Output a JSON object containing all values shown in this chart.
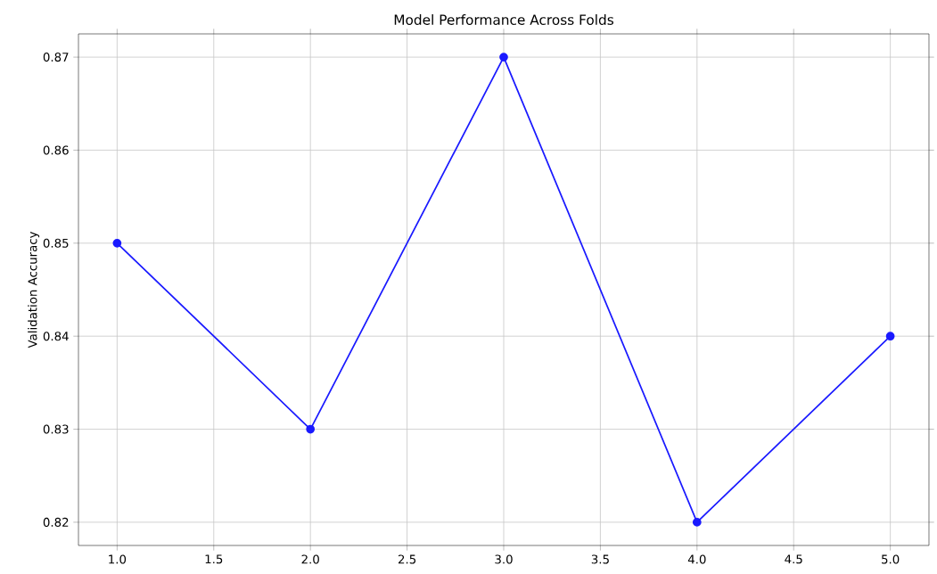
{
  "chart_data": {
    "type": "line",
    "title": "Model Performance Across Folds",
    "ylabel": "Validation Accuracy",
    "x": [
      1,
      2,
      3,
      4,
      5
    ],
    "series": [
      {
        "color": "#1a1aff",
        "values": [
          0.85,
          0.83,
          0.87,
          0.82,
          0.84
        ]
      }
    ],
    "xlim": [
      0.8,
      5.2
    ],
    "ylim": [
      0.8175,
      0.8725
    ],
    "xticks": [
      {
        "value": 1,
        "label": "1.0"
      },
      {
        "value": 1.5,
        "label": "1.5"
      },
      {
        "value": 2,
        "label": "2.0"
      },
      {
        "value": 2.5,
        "label": "2.5"
      },
      {
        "value": 3,
        "label": "3.0"
      },
      {
        "value": 3.5,
        "label": "3.5"
      },
      {
        "value": 4,
        "label": "4.0"
      },
      {
        "value": 4.5,
        "label": "4.5"
      },
      {
        "value": 5,
        "label": "5.0"
      }
    ],
    "yticks": [
      0.82,
      0.83,
      0.84,
      0.85,
      0.86,
      0.87
    ],
    "grid": true,
    "marker": "circle",
    "line_style": "solid"
  }
}
